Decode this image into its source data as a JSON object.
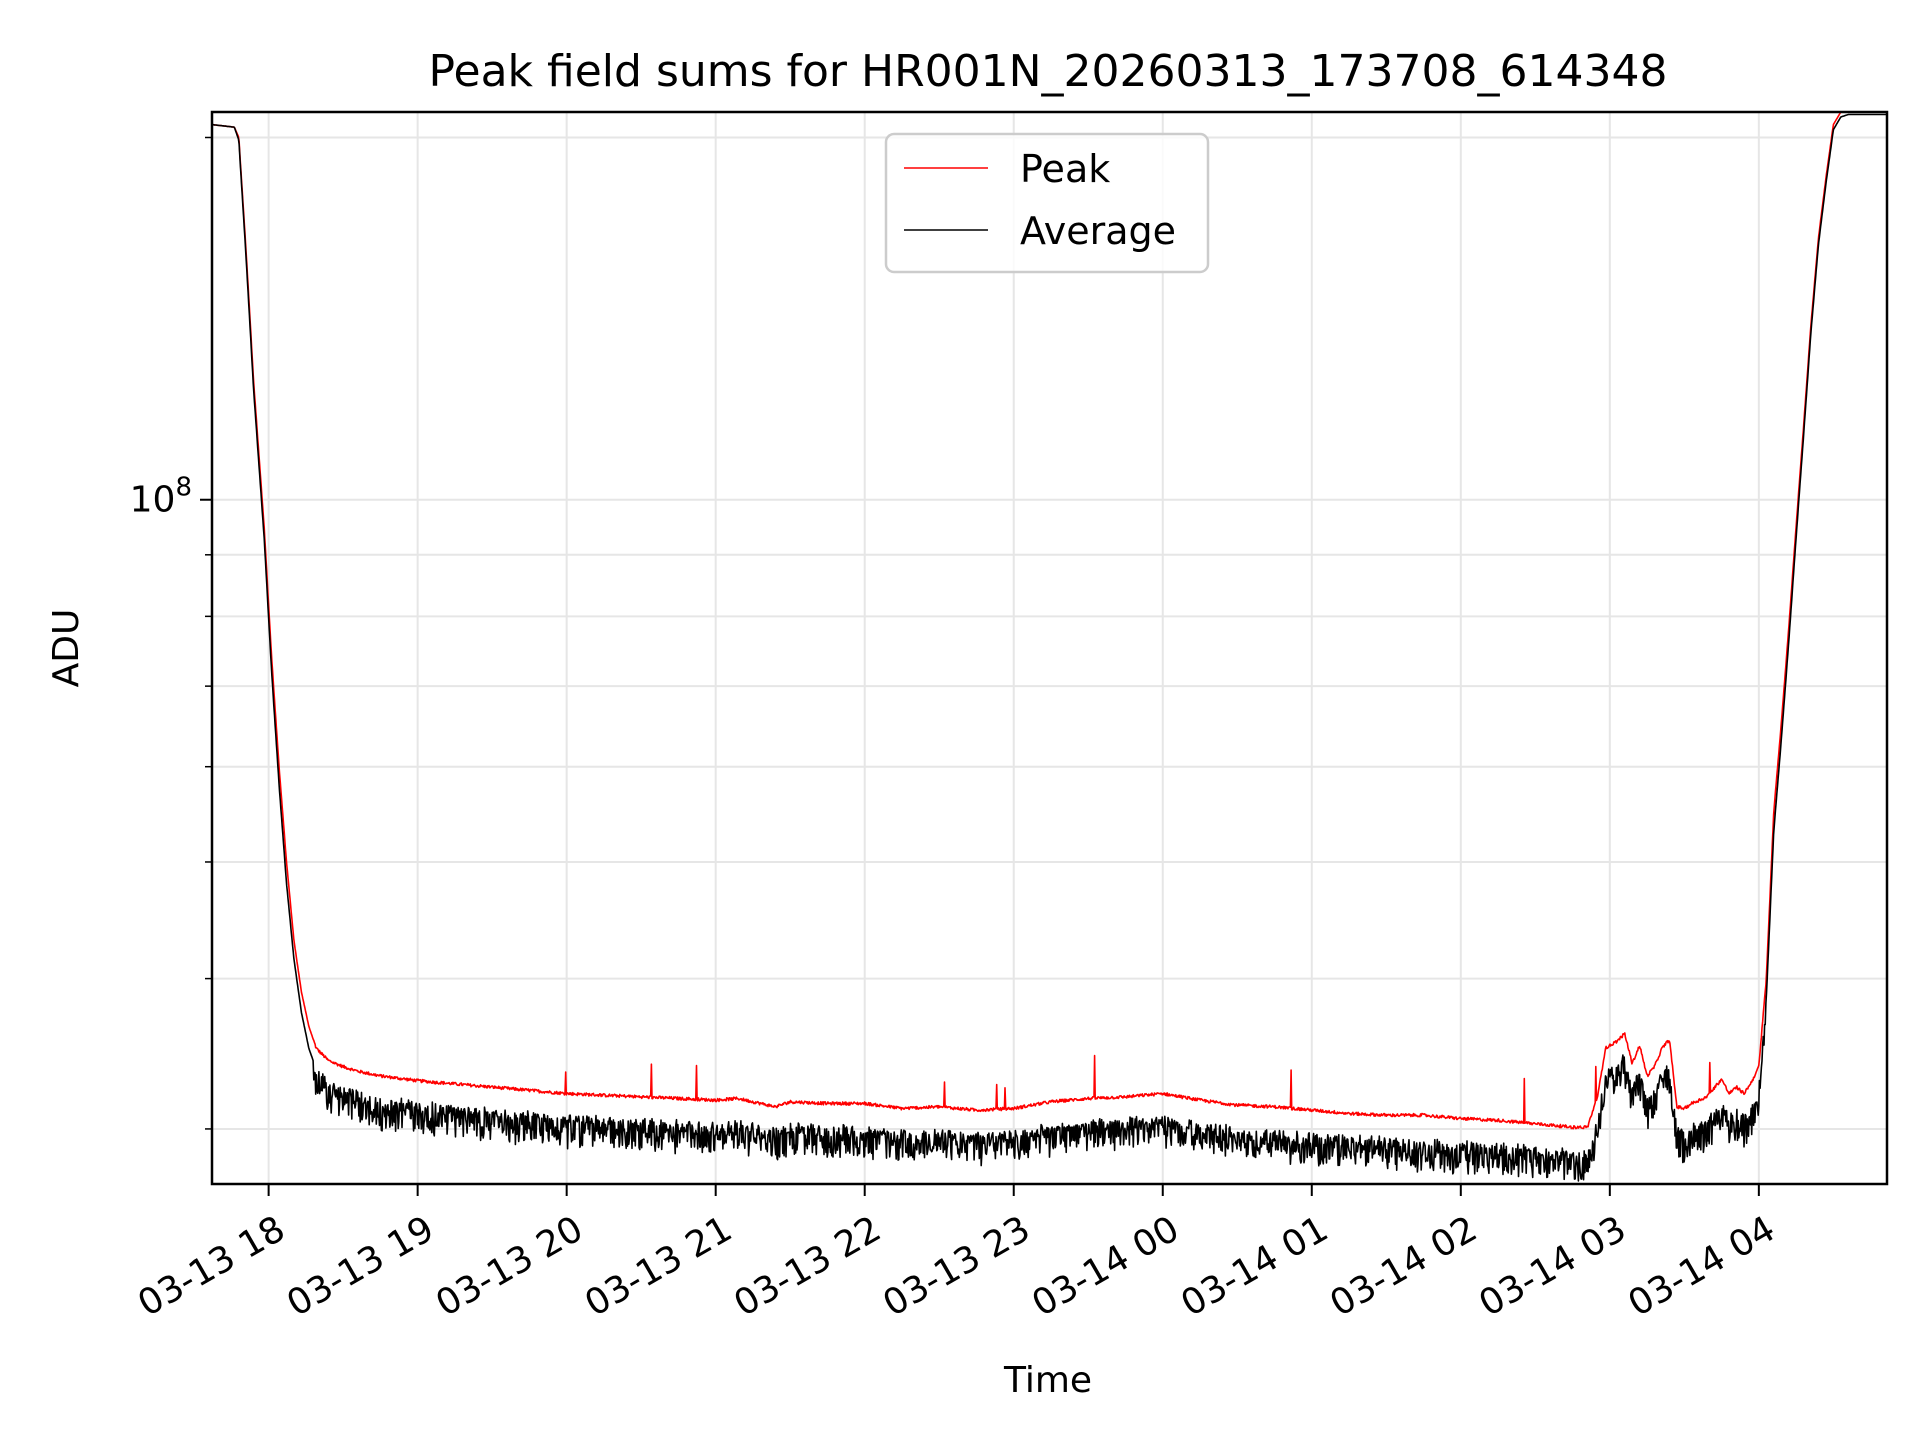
{
  "chart_data": {
    "type": "line",
    "title": "Peak field sums for HR001N_20260313_173708_614348",
    "xlabel": "Time",
    "ylabel": "ADU",
    "yscale": "log",
    "ylim": [
      27000000,
      210000000
    ],
    "xlim_hours": [
      17.62,
      28.86
    ],
    "grid": true,
    "legend_position": "upper center",
    "x_ticks": [
      {
        "hour": 18,
        "label": "03-13 18"
      },
      {
        "hour": 19,
        "label": "03-13 19"
      },
      {
        "hour": 20,
        "label": "03-13 20"
      },
      {
        "hour": 21,
        "label": "03-13 21"
      },
      {
        "hour": 22,
        "label": "03-13 22"
      },
      {
        "hour": 23,
        "label": "03-13 23"
      },
      {
        "hour": 24,
        "label": "03-14 00"
      },
      {
        "hour": 25,
        "label": "03-14 01"
      },
      {
        "hour": 26,
        "label": "03-14 02"
      },
      {
        "hour": 27,
        "label": "03-14 03"
      },
      {
        "hour": 28,
        "label": "03-14 04"
      }
    ],
    "y_major_ticks": [
      {
        "value": 100000000,
        "base": "10",
        "exponent": "8"
      }
    ],
    "y_minor_ticks": [
      30000000,
      40000000,
      50000000,
      60000000,
      70000000,
      80000000,
      90000000,
      200000000
    ],
    "series": [
      {
        "name": "Peak",
        "color": "#ff0000",
        "x": [
          17.62,
          17.77,
          17.8,
          17.85,
          17.9,
          17.97,
          18.02,
          18.07,
          18.12,
          18.17,
          18.22,
          18.27,
          18.32,
          18.4,
          18.5,
          18.6,
          18.75,
          19.0,
          19.5,
          20.0,
          20.5,
          21.0,
          21.15,
          21.4,
          21.5,
          21.75,
          22.0,
          22.25,
          22.5,
          22.75,
          23.0,
          23.25,
          23.5,
          23.75,
          24.0,
          24.25,
          24.5,
          24.75,
          25.0,
          25.25,
          25.5,
          25.75,
          26.0,
          26.25,
          26.5,
          26.75,
          26.85,
          26.92,
          26.97,
          27.05,
          27.1,
          27.15,
          27.2,
          27.25,
          27.3,
          27.35,
          27.4,
          27.45,
          27.5,
          27.55,
          27.65,
          27.75,
          27.8,
          27.85,
          27.9,
          27.95,
          28.0,
          28.05,
          28.1,
          28.15,
          28.2,
          28.25,
          28.3,
          28.35,
          28.4,
          28.45,
          28.5,
          28.55,
          28.6,
          28.65,
          28.86
        ],
        "y": [
          205000000,
          204000000,
          200000000,
          160000000,
          125000000,
          95000000,
          74000000,
          60000000,
          50000000,
          43000000,
          39000000,
          36500000,
          35000000,
          34200000,
          33800000,
          33500000,
          33200000,
          32900000,
          32500000,
          32100000,
          31900000,
          31700000,
          31800000,
          31300000,
          31600000,
          31500000,
          31500000,
          31200000,
          31300000,
          31100000,
          31200000,
          31600000,
          31800000,
          31900000,
          32100000,
          31700000,
          31400000,
          31300000,
          31100000,
          30900000,
          30800000,
          30800000,
          30600000,
          30500000,
          30300000,
          30100000,
          30100000,
          32000000,
          35000000,
          35500000,
          36000000,
          34000000,
          35200000,
          33200000,
          33800000,
          35000000,
          35600000,
          31300000,
          31200000,
          31500000,
          31900000,
          33000000,
          32100000,
          32500000,
          32100000,
          32800000,
          33800000,
          40000000,
          55000000,
          65000000,
          78000000,
          95000000,
          115000000,
          140000000,
          165000000,
          185000000,
          205000000,
          210000000,
          210000000,
          210000000,
          210000000
        ]
      },
      {
        "name": "Average",
        "color": "#000000",
        "x": [
          17.62,
          17.77,
          17.8,
          17.85,
          17.9,
          17.97,
          18.02,
          18.07,
          18.12,
          18.17,
          18.22,
          18.27,
          18.32,
          18.4,
          18.5,
          18.6,
          18.75,
          19.0,
          19.5,
          20.0,
          20.5,
          21.0,
          21.15,
          21.4,
          21.5,
          21.75,
          22.0,
          22.25,
          22.5,
          22.75,
          23.0,
          23.25,
          23.5,
          23.75,
          24.0,
          24.25,
          24.5,
          24.75,
          25.0,
          25.25,
          25.5,
          25.75,
          26.0,
          26.25,
          26.5,
          26.75,
          26.85,
          26.92,
          26.97,
          27.05,
          27.1,
          27.15,
          27.2,
          27.25,
          27.3,
          27.35,
          27.4,
          27.45,
          27.5,
          27.55,
          27.65,
          27.75,
          27.8,
          27.85,
          27.9,
          27.95,
          28.0,
          28.05,
          28.1,
          28.15,
          28.2,
          28.25,
          28.3,
          28.35,
          28.4,
          28.45,
          28.5,
          28.55,
          28.6,
          28.65,
          28.86
        ],
        "y": [
          205000000,
          204000000,
          199000000,
          158000000,
          123000000,
          93000000,
          72000000,
          58000000,
          48000000,
          41500000,
          37500000,
          35000000,
          33600000,
          32800000,
          32400000,
          32100000,
          31800000,
          31500000,
          31100000,
          30700000,
          30500000,
          30300000,
          30400000,
          29900000,
          30200000,
          30100000,
          30100000,
          29800000,
          29900000,
          29700000,
          29800000,
          30200000,
          30400000,
          30500000,
          30700000,
          30300000,
          30000000,
          29900000,
          29700000,
          29500000,
          29400000,
          29400000,
          29200000,
          29100000,
          28900000,
          28700000,
          28700000,
          30500000,
          33500000,
          34000000,
          34500000,
          32500000,
          33700000,
          31700000,
          32300000,
          33500000,
          34000000,
          30000000,
          29900000,
          30200000,
          30500000,
          31500000,
          30700000,
          31100000,
          30700000,
          31300000,
          32300000,
          38500000,
          53000000,
          63000000,
          76000000,
          93000000,
          113000000,
          138000000,
          163000000,
          183000000,
          203000000,
          208000000,
          209000000,
          209000000,
          209000000
        ]
      }
    ]
  }
}
